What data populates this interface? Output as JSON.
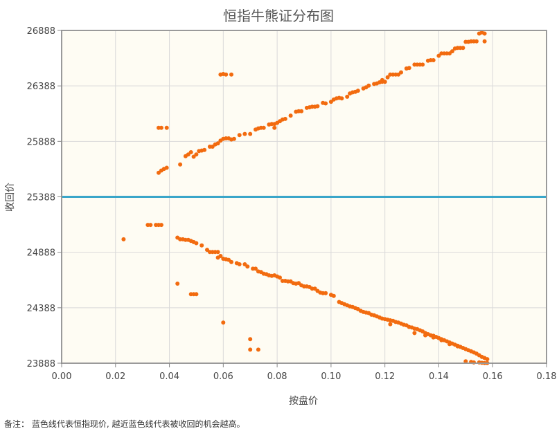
{
  "chart_data": {
    "type": "scatter",
    "title": "恒指牛熊证分布图",
    "xlabel": "按盘价",
    "ylabel": "收回价",
    "xlim": [
      0,
      0.18
    ],
    "ylim": [
      23888,
      26888
    ],
    "x_ticks": [
      "0.00",
      "0.02",
      "0.04",
      "0.06",
      "0.08",
      "0.10",
      "0.12",
      "0.14",
      "0.16",
      "0.18"
    ],
    "y_ticks": [
      "23888",
      "24388",
      "24888",
      "25388",
      "25888",
      "26388",
      "26888"
    ],
    "grid": true,
    "reference_line": {
      "y": 25388,
      "color": "#3aa6c9"
    },
    "point_color": "#f26b0f",
    "plot_background": "#fefcf3",
    "series": [
      {
        "name": "",
        "points": [
          [
            0.036,
            25605
          ],
          [
            0.037,
            25625
          ],
          [
            0.038,
            25640
          ],
          [
            0.039,
            25650
          ],
          [
            0.036,
            26010
          ],
          [
            0.037,
            26010
          ],
          [
            0.039,
            26010
          ],
          [
            0.044,
            25680
          ],
          [
            0.046,
            25755
          ],
          [
            0.047,
            25770
          ],
          [
            0.048,
            25790
          ],
          [
            0.049,
            25750
          ],
          [
            0.05,
            25770
          ],
          [
            0.051,
            25800
          ],
          [
            0.052,
            25805
          ],
          [
            0.053,
            25810
          ],
          [
            0.055,
            25840
          ],
          [
            0.056,
            25840
          ],
          [
            0.057,
            25860
          ],
          [
            0.058,
            25870
          ],
          [
            0.059,
            25895
          ],
          [
            0.06,
            25910
          ],
          [
            0.061,
            25915
          ],
          [
            0.062,
            25915
          ],
          [
            0.063,
            25905
          ],
          [
            0.064,
            25910
          ],
          [
            0.059,
            26490
          ],
          [
            0.06,
            26495
          ],
          [
            0.061,
            26490
          ],
          [
            0.063,
            26490
          ],
          [
            0.066,
            25945
          ],
          [
            0.068,
            25955
          ],
          [
            0.07,
            25955
          ],
          [
            0.072,
            25995
          ],
          [
            0.073,
            26005
          ],
          [
            0.074,
            26010
          ],
          [
            0.075,
            26010
          ],
          [
            0.077,
            26040
          ],
          [
            0.078,
            26045
          ],
          [
            0.079,
            26045
          ],
          [
            0.08,
            26055
          ],
          [
            0.079,
            26010
          ],
          [
            0.081,
            26070
          ],
          [
            0.082,
            26085
          ],
          [
            0.083,
            26090
          ],
          [
            0.085,
            26120
          ],
          [
            0.087,
            26155
          ],
          [
            0.088,
            26160
          ],
          [
            0.089,
            26160
          ],
          [
            0.091,
            26190
          ],
          [
            0.092,
            26195
          ],
          [
            0.093,
            26200
          ],
          [
            0.094,
            26200
          ],
          [
            0.095,
            26205
          ],
          [
            0.097,
            26235
          ],
          [
            0.098,
            26230
          ],
          [
            0.1,
            26245
          ],
          [
            0.101,
            26265
          ],
          [
            0.102,
            26275
          ],
          [
            0.103,
            26280
          ],
          [
            0.104,
            26275
          ],
          [
            0.106,
            26290
          ],
          [
            0.107,
            26320
          ],
          [
            0.108,
            26330
          ],
          [
            0.109,
            26335
          ],
          [
            0.11,
            26345
          ],
          [
            0.112,
            26365
          ],
          [
            0.113,
            26375
          ],
          [
            0.114,
            26390
          ],
          [
            0.116,
            26405
          ],
          [
            0.117,
            26410
          ],
          [
            0.118,
            26420
          ],
          [
            0.119,
            26425
          ],
          [
            0.12,
            26425
          ],
          [
            0.119,
            26440
          ],
          [
            0.121,
            26465
          ],
          [
            0.122,
            26490
          ],
          [
            0.123,
            26490
          ],
          [
            0.124,
            26490
          ],
          [
            0.125,
            26490
          ],
          [
            0.126,
            26510
          ],
          [
            0.128,
            26545
          ],
          [
            0.129,
            26550
          ],
          [
            0.131,
            26580
          ],
          [
            0.132,
            26580
          ],
          [
            0.133,
            26580
          ],
          [
            0.134,
            26580
          ],
          [
            0.136,
            26615
          ],
          [
            0.137,
            26620
          ],
          [
            0.138,
            26620
          ],
          [
            0.14,
            26660
          ],
          [
            0.141,
            26680
          ],
          [
            0.142,
            26680
          ],
          [
            0.143,
            26680
          ],
          [
            0.144,
            26680
          ],
          [
            0.145,
            26700
          ],
          [
            0.146,
            26725
          ],
          [
            0.147,
            26730
          ],
          [
            0.148,
            26730
          ],
          [
            0.149,
            26730
          ],
          [
            0.15,
            26785
          ],
          [
            0.151,
            26785
          ],
          [
            0.152,
            26790
          ],
          [
            0.153,
            26790
          ],
          [
            0.154,
            26790
          ],
          [
            0.155,
            26860
          ],
          [
            0.156,
            26870
          ],
          [
            0.157,
            26790
          ],
          [
            0.157,
            26860
          ]
        ]
      },
      {
        "name": "",
        "points": [
          [
            0.023,
            25005
          ],
          [
            0.032,
            25135
          ],
          [
            0.033,
            25135
          ],
          [
            0.035,
            25135
          ],
          [
            0.036,
            25135
          ],
          [
            0.037,
            25135
          ],
          [
            0.043,
            25020
          ],
          [
            0.044,
            25005
          ],
          [
            0.045,
            25005
          ],
          [
            0.046,
            25000
          ],
          [
            0.047,
            25000
          ],
          [
            0.048,
            24990
          ],
          [
            0.049,
            24980
          ],
          [
            0.05,
            24970
          ],
          [
            0.052,
            24950
          ],
          [
            0.054,
            24910
          ],
          [
            0.055,
            24890
          ],
          [
            0.056,
            24890
          ],
          [
            0.057,
            24890
          ],
          [
            0.058,
            24890
          ],
          [
            0.058,
            24840
          ],
          [
            0.059,
            24855
          ],
          [
            0.06,
            24830
          ],
          [
            0.061,
            24825
          ],
          [
            0.062,
            24820
          ],
          [
            0.063,
            24800
          ],
          [
            0.065,
            24790
          ],
          [
            0.066,
            24780
          ],
          [
            0.068,
            24780
          ],
          [
            0.069,
            24760
          ],
          [
            0.071,
            24740
          ],
          [
            0.072,
            24740
          ],
          [
            0.073,
            24715
          ],
          [
            0.074,
            24710
          ],
          [
            0.075,
            24695
          ],
          [
            0.076,
            24690
          ],
          [
            0.077,
            24680
          ],
          [
            0.078,
            24675
          ],
          [
            0.079,
            24680
          ],
          [
            0.08,
            24670
          ],
          [
            0.081,
            24660
          ],
          [
            0.082,
            24630
          ],
          [
            0.083,
            24630
          ],
          [
            0.084,
            24625
          ],
          [
            0.085,
            24625
          ],
          [
            0.086,
            24610
          ],
          [
            0.087,
            24605
          ],
          [
            0.088,
            24610
          ],
          [
            0.089,
            24590
          ],
          [
            0.09,
            24580
          ],
          [
            0.091,
            24580
          ],
          [
            0.092,
            24575
          ],
          [
            0.093,
            24560
          ],
          [
            0.094,
            24560
          ],
          [
            0.095,
            24540
          ],
          [
            0.096,
            24525
          ],
          [
            0.097,
            24520
          ],
          [
            0.098,
            24520
          ],
          [
            0.1,
            24505
          ],
          [
            0.101,
            24495
          ],
          [
            0.103,
            24440
          ],
          [
            0.104,
            24430
          ],
          [
            0.105,
            24420
          ],
          [
            0.106,
            24410
          ],
          [
            0.107,
            24400
          ],
          [
            0.108,
            24395
          ],
          [
            0.109,
            24385
          ],
          [
            0.11,
            24375
          ],
          [
            0.111,
            24360
          ],
          [
            0.112,
            24350
          ],
          [
            0.113,
            24345
          ],
          [
            0.114,
            24340
          ],
          [
            0.115,
            24325
          ],
          [
            0.116,
            24320
          ],
          [
            0.117,
            24310
          ],
          [
            0.118,
            24300
          ],
          [
            0.119,
            24290
          ],
          [
            0.12,
            24285
          ],
          [
            0.121,
            24280
          ],
          [
            0.122,
            24275
          ],
          [
            0.123,
            24270
          ],
          [
            0.124,
            24260
          ],
          [
            0.125,
            24255
          ],
          [
            0.126,
            24245
          ],
          [
            0.127,
            24235
          ],
          [
            0.128,
            24230
          ],
          [
            0.129,
            24215
          ],
          [
            0.13,
            24210
          ],
          [
            0.131,
            24200
          ],
          [
            0.132,
            24195
          ],
          [
            0.133,
            24185
          ],
          [
            0.134,
            24175
          ],
          [
            0.135,
            24160
          ],
          [
            0.136,
            24150
          ],
          [
            0.137,
            24140
          ],
          [
            0.138,
            24135
          ],
          [
            0.139,
            24125
          ],
          [
            0.14,
            24115
          ],
          [
            0.141,
            24105
          ],
          [
            0.142,
            24095
          ],
          [
            0.143,
            24085
          ],
          [
            0.144,
            24075
          ],
          [
            0.145,
            24065
          ],
          [
            0.146,
            24055
          ],
          [
            0.147,
            24045
          ],
          [
            0.148,
            24035
          ],
          [
            0.149,
            24025
          ],
          [
            0.15,
            24015
          ],
          [
            0.151,
            24005
          ],
          [
            0.152,
            23995
          ],
          [
            0.153,
            23985
          ],
          [
            0.154,
            23975
          ],
          [
            0.155,
            23960
          ],
          [
            0.156,
            23945
          ],
          [
            0.157,
            23935
          ],
          [
            0.158,
            23925
          ],
          [
            0.15,
            23905
          ],
          [
            0.152,
            23900
          ],
          [
            0.153,
            23895
          ],
          [
            0.155,
            23895
          ],
          [
            0.156,
            23892
          ],
          [
            0.157,
            23890
          ],
          [
            0.158,
            23890
          ],
          [
            0.122,
            24240
          ],
          [
            0.131,
            24160
          ],
          [
            0.135,
            24140
          ],
          [
            0.138,
            24120
          ],
          [
            0.141,
            24095
          ],
          [
            0.144,
            24060
          ],
          [
            0.147,
            24040
          ],
          [
            0.043,
            24605
          ],
          [
            0.048,
            24510
          ],
          [
            0.049,
            24510
          ],
          [
            0.05,
            24510
          ],
          [
            0.06,
            24255
          ],
          [
            0.07,
            24105
          ],
          [
            0.07,
            24010
          ],
          [
            0.073,
            24010
          ]
        ]
      }
    ]
  },
  "footer": {
    "note": "备注：  蓝色线代表恒指现价, 越近蓝色线代表被收回的机会越高。"
  }
}
